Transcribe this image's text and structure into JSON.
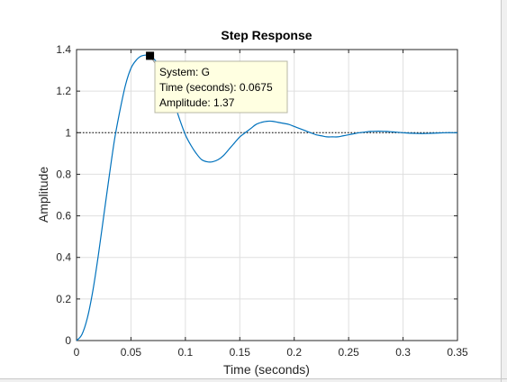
{
  "chart_data": {
    "type": "line",
    "title": "Step Response",
    "xlabel": "Time (seconds)",
    "ylabel": "Amplitude",
    "xlim": [
      0,
      0.35
    ],
    "ylim": [
      0,
      1.4
    ],
    "x_ticks": [
      "0",
      "0.05",
      "0.1",
      "0.15",
      "0.2",
      "0.25",
      "0.3",
      "0.35"
    ],
    "y_ticks": [
      "0",
      "0.2",
      "0.4",
      "0.6",
      "0.8",
      "1",
      "1.2",
      "1.4"
    ],
    "grid": true,
    "reference_line": {
      "y": 1,
      "style": "dotted"
    },
    "series": [
      {
        "color": "#0072bd",
        "x": [
          0,
          0.005,
          0.01,
          0.015,
          0.02,
          0.025,
          0.03,
          0.035,
          0.04,
          0.045,
          0.05,
          0.055,
          0.06,
          0.0675,
          0.075,
          0.08,
          0.085,
          0.09,
          0.095,
          0.1,
          0.105,
          0.11,
          0.115,
          0.12,
          0.125,
          0.13,
          0.135,
          0.14,
          0.145,
          0.15,
          0.155,
          0.16,
          0.165,
          0.17,
          0.175,
          0.18,
          0.185,
          0.19,
          0.195,
          0.2,
          0.205,
          0.21,
          0.215,
          0.22,
          0.225,
          0.23,
          0.235,
          0.24,
          0.245,
          0.25,
          0.255,
          0.26,
          0.265,
          0.27,
          0.275,
          0.28,
          0.285,
          0.29,
          0.295,
          0.3,
          0.305,
          0.31,
          0.315,
          0.32,
          0.325,
          0.33,
          0.335,
          0.34,
          0.345,
          0.35
        ],
        "y": [
          0,
          0.03,
          0.11,
          0.24,
          0.41,
          0.6,
          0.79,
          0.97,
          1.11,
          1.23,
          1.31,
          1.35,
          1.37,
          1.37,
          1.33,
          1.28,
          1.22,
          1.14,
          1.06,
          0.99,
          0.94,
          0.9,
          0.87,
          0.86,
          0.86,
          0.87,
          0.89,
          0.92,
          0.95,
          0.98,
          1.0,
          1.02,
          1.04,
          1.05,
          1.055,
          1.055,
          1.05,
          1.045,
          1.04,
          1.03,
          1.02,
          1.01,
          1.0,
          0.99,
          0.985,
          0.98,
          0.98,
          0.98,
          0.985,
          0.99,
          0.995,
          1.0,
          1.003,
          1.006,
          1.007,
          1.007,
          1.006,
          1.004,
          1.002,
          1.0,
          0.998,
          0.997,
          0.996,
          0.996,
          0.997,
          0.998,
          0.999,
          1.0,
          1.0,
          1.0
        ]
      }
    ],
    "datatip": {
      "x": 0.0675,
      "y": 1.37,
      "lines": [
        "System: G",
        "Time (seconds): 0.0675",
        "Amplitude: 1.37"
      ]
    }
  }
}
